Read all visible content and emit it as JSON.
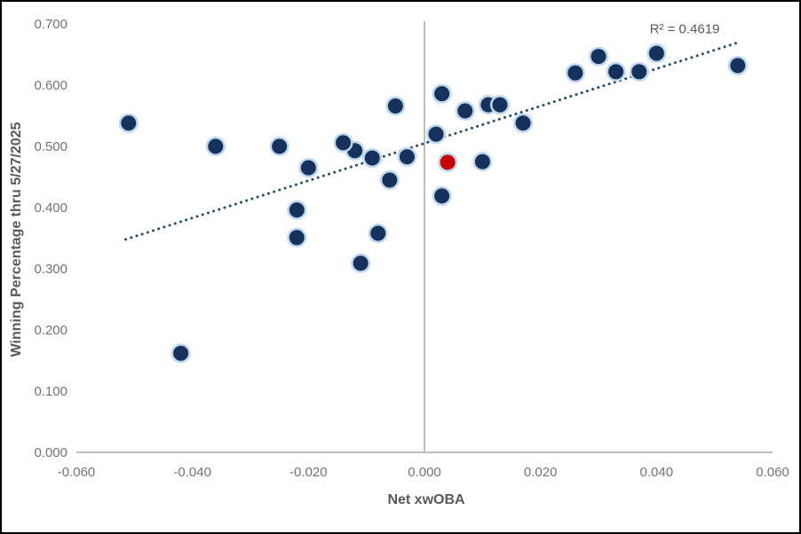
{
  "colors": {
    "background": "#FFFFFF",
    "border": "#000000",
    "axis_line": "#BFBFBF",
    "tick_label": "#737373",
    "axis_title": "#595959",
    "annotation_text": "#595959",
    "point_fill": "#16325C",
    "point_halo": "#BDD7EE",
    "highlight_point_fill": "#C80000",
    "trendline": "#1F4E79"
  },
  "chart_data": {
    "type": "scatter",
    "title": "",
    "xlabel": "Net xwOBA",
    "ylabel": "Winning Percentage thru 5/27/2025",
    "annotation": "R² = 0.4619",
    "r_squared": 0.4619,
    "xlim": [
      -0.06,
      0.06
    ],
    "ylim": [
      0.0,
      0.7
    ],
    "x_ticks": [
      "-0.060",
      "-0.040",
      "-0.020",
      "0.000",
      "0.020",
      "0.040",
      "0.060"
    ],
    "y_ticks": [
      "0.000",
      "0.100",
      "0.200",
      "0.300",
      "0.400",
      "0.500",
      "0.600",
      "0.700"
    ],
    "grid": "off",
    "legend": "none",
    "series": [
      {
        "name": "teams",
        "marker": "circle",
        "points": [
          [
            -0.051,
            0.538
          ],
          [
            -0.042,
            0.162
          ],
          [
            -0.036,
            0.5
          ],
          [
            -0.025,
            0.5
          ],
          [
            -0.022,
            0.396
          ],
          [
            -0.022,
            0.351
          ],
          [
            -0.02,
            0.465
          ],
          [
            -0.012,
            0.493
          ],
          [
            -0.014,
            0.506
          ],
          [
            -0.011,
            0.309
          ],
          [
            -0.009,
            0.481
          ],
          [
            -0.008,
            0.358
          ],
          [
            -0.006,
            0.445
          ],
          [
            -0.005,
            0.566
          ],
          [
            -0.003,
            0.483
          ],
          [
            0.002,
            0.52
          ],
          [
            0.003,
            0.586
          ],
          [
            0.003,
            0.419
          ],
          [
            0.007,
            0.558
          ],
          [
            0.01,
            0.475
          ],
          [
            0.011,
            0.568
          ],
          [
            0.013,
            0.568
          ],
          [
            0.017,
            0.538
          ],
          [
            0.026,
            0.62
          ],
          [
            0.03,
            0.647
          ],
          [
            0.033,
            0.622
          ],
          [
            0.037,
            0.622
          ],
          [
            0.04,
            0.652
          ],
          [
            0.054,
            0.632
          ]
        ]
      },
      {
        "name": "highlighted-team",
        "marker": "circle",
        "points": [
          [
            0.004,
            0.474
          ]
        ]
      }
    ],
    "trendline": {
      "style": "dotted",
      "x1": -0.0515,
      "y1": 0.348,
      "x2": 0.0545,
      "y2": 0.671
    }
  }
}
